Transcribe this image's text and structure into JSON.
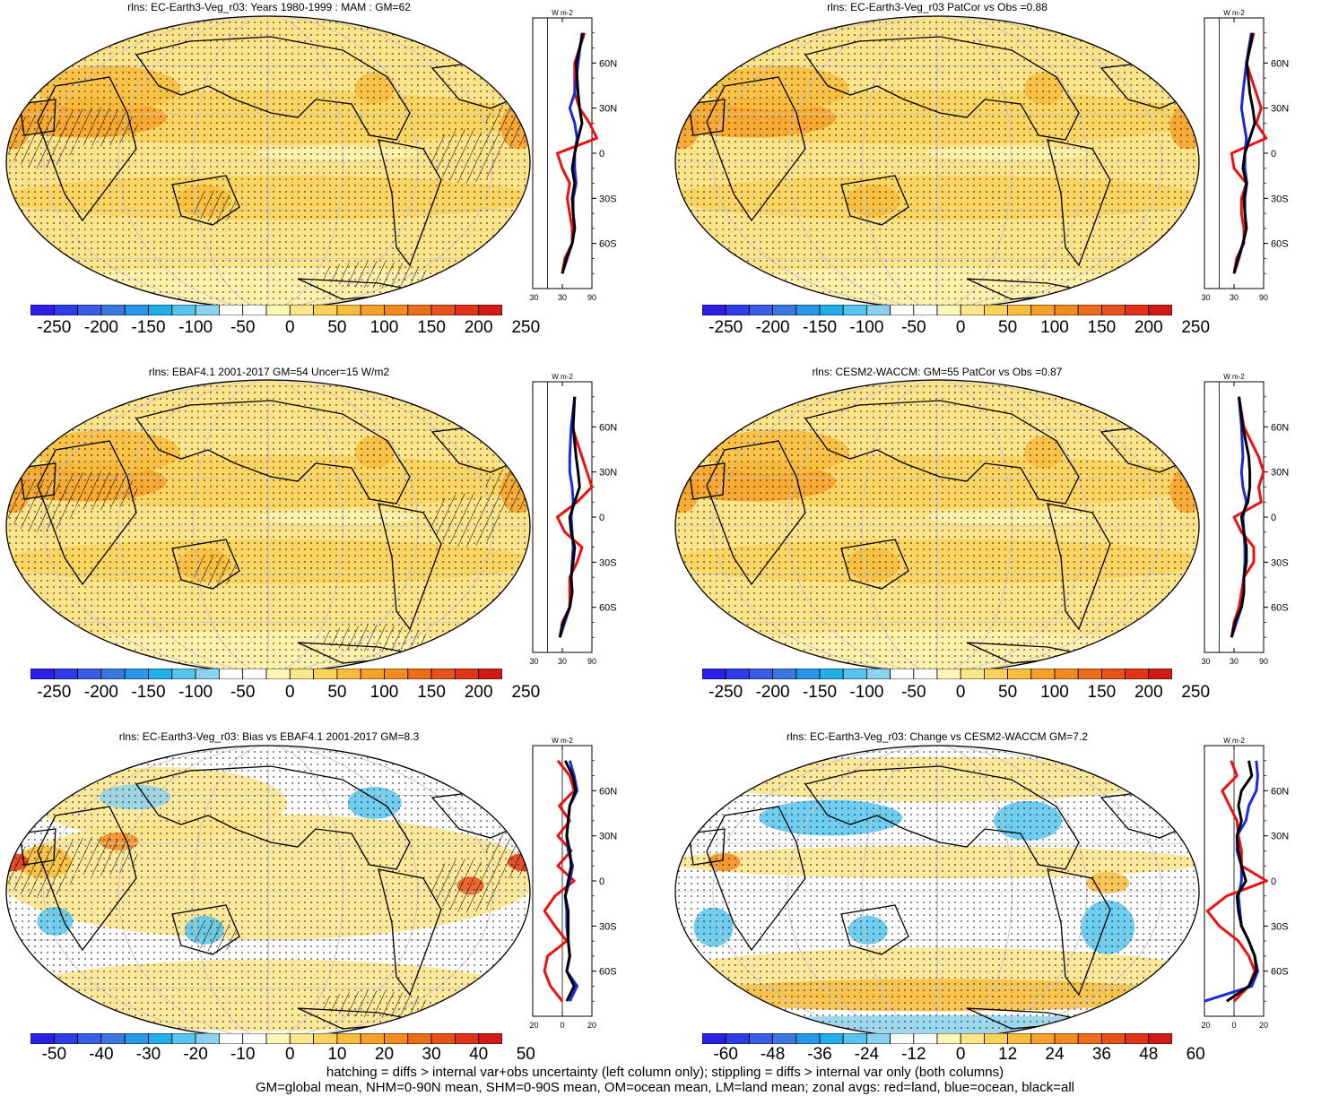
{
  "panels": [
    {
      "title": "rlns: EC-Earth3-Veg_r03: Years 1980-1999 : MAM : GM=62",
      "scale": "abs",
      "colorbar_ticks": [
        "-250",
        "-200",
        "-150",
        "-100",
        "-50",
        "0",
        "50",
        "100",
        "150",
        "200",
        "250"
      ],
      "zonal_xticks": [
        "-30",
        "30",
        "90"
      ],
      "zonal_unit": "W m-2",
      "hatching": true
    },
    {
      "title": "rlns: EC-Earth3-Veg_r03 PatCor vs Obs =0.88",
      "scale": "abs",
      "colorbar_ticks": [
        "-250",
        "-200",
        "-150",
        "-100",
        "-50",
        "0",
        "50",
        "100",
        "150",
        "200",
        "250"
      ],
      "zonal_xticks": [
        "-30",
        "30",
        "90"
      ],
      "zonal_unit": "W m-2",
      "hatching": false
    },
    {
      "title": "rlns: EBAF4.1 2001-2017 GM=54 Uncer=15 W/m2",
      "scale": "abs",
      "colorbar_ticks": [
        "-250",
        "-200",
        "-150",
        "-100",
        "-50",
        "0",
        "50",
        "100",
        "150",
        "200",
        "250"
      ],
      "zonal_xticks": [
        "-30",
        "30",
        "90"
      ],
      "zonal_unit": "W m-2",
      "hatching": true
    },
    {
      "title": "rlns: CESM2-WACCM: GM=55 PatCor vs Obs =0.87",
      "scale": "abs",
      "colorbar_ticks": [
        "-250",
        "-200",
        "-150",
        "-100",
        "-50",
        "0",
        "50",
        "100",
        "150",
        "200",
        "250"
      ],
      "zonal_xticks": [
        "-30",
        "30",
        "90"
      ],
      "zonal_unit": "W m-2",
      "hatching": false
    },
    {
      "title": "rlns: EC-Earth3-Veg_r03: Bias vs EBAF4.1 2001-2017 GM=8.3",
      "scale": "diff",
      "colorbar_ticks": [
        "-50",
        "-40",
        "-30",
        "-20",
        "-10",
        "0",
        "10",
        "20",
        "30",
        "40",
        "50"
      ],
      "zonal_xticks": [
        "-20",
        "0",
        "20"
      ],
      "zonal_unit": "W m-2",
      "hatching": true
    },
    {
      "title": "rlns: EC-Earth3-Veg_r03: Change vs CESM2-WACCM GM=7.2",
      "scale": "diff",
      "colorbar_ticks": [
        "-60",
        "-48",
        "-36",
        "-24",
        "-12",
        "0",
        "12",
        "24",
        "36",
        "48",
        "60"
      ],
      "zonal_xticks": [
        "-20",
        "0",
        "20"
      ],
      "zonal_unit": "W m-2",
      "hatching": false
    }
  ],
  "zonal_ylabels": [
    "60N",
    "30N",
    "0",
    "30S",
    "60S"
  ],
  "colorbar_colors": [
    "#2b1ee6",
    "#2e3ce6",
    "#3a5ce6",
    "#3a78e0",
    "#2a96e8",
    "#22aee8",
    "#56c4ec",
    "#8ad2ee",
    "#ffffff",
    "#ffffff",
    "#fff7b8",
    "#fde78a",
    "#fbd25a",
    "#f9bc3c",
    "#f6a12a",
    "#f18a20",
    "#ec6e1c",
    "#e6521a",
    "#e0331a",
    "#d11a16"
  ],
  "line_colors": {
    "land": "#ee1111",
    "ocean": "#1a2ae0",
    "all": "#000000"
  },
  "footnote": [
    "hatching = diffs > internal var+obs uncertainty (left column only); stippling = diffs > internal var only (both columns)",
    "GM=global mean, NHM=0-90N mean, SHM=0-90S mean, OM=ocean mean, LM=land mean; zonal avgs: red=land, blue=ocean, black=all"
  ],
  "chart_data": [
    {
      "type": "heatmap",
      "title": "rlns: EC-Earth3-Veg_r03: Years 1980-1999 : MAM : GM=62",
      "colorbar": [
        -250,
        250
      ],
      "zonal": {
        "xlim": [
          -30,
          90
        ],
        "lat": [
          80,
          60,
          40,
          30,
          20,
          10,
          0,
          -10,
          -20,
          -30,
          -40,
          -50,
          -60,
          -70,
          -80
        ],
        "land": [
          75,
          55,
          55,
          65,
          85,
          100,
          20,
          30,
          45,
          40,
          45,
          50,
          50,
          35,
          30
        ],
        "ocean": [
          70,
          62,
          55,
          45,
          55,
          60,
          55,
          55,
          58,
          52,
          52,
          55,
          50,
          40,
          30
        ],
        "all": [
          72,
          58,
          62,
          65,
          70,
          62,
          55,
          50,
          55,
          50,
          52,
          55,
          50,
          38,
          30
        ]
      }
    },
    {
      "type": "heatmap",
      "title": "rlns: EC-Earth3-Veg_r03 PatCor vs Obs =0.88",
      "colorbar": [
        -250,
        250
      ],
      "zonal": {
        "xlim": [
          -30,
          90
        ],
        "lat": [
          80,
          60,
          40,
          30,
          20,
          10,
          0,
          -10,
          -20,
          -30,
          -40,
          -50,
          -60,
          -70,
          -80
        ],
        "land": [
          70,
          55,
          75,
          85,
          75,
          95,
          25,
          30,
          55,
          45,
          45,
          50,
          50,
          35,
          30
        ],
        "ocean": [
          65,
          55,
          48,
          45,
          50,
          55,
          52,
          52,
          56,
          52,
          52,
          55,
          48,
          40,
          30
        ],
        "all": [
          68,
          56,
          62,
          68,
          72,
          62,
          52,
          48,
          55,
          50,
          52,
          55,
          48,
          38,
          30
        ]
      }
    },
    {
      "type": "heatmap",
      "title": "rlns: EBAF4.1 2001-2017 GM=54 Uncer=15 W/m2",
      "colorbar": [
        -250,
        250
      ],
      "zonal": {
        "xlim": [
          -30,
          90
        ],
        "lat": [
          80,
          60,
          40,
          30,
          20,
          10,
          0,
          -10,
          -20,
          -30,
          -40,
          -50,
          -60,
          -70,
          -80
        ],
        "land": [
          55,
          50,
          70,
          80,
          90,
          60,
          20,
          35,
          70,
          60,
          45,
          45,
          45,
          30,
          25
        ],
        "ocean": [
          55,
          48,
          45,
          45,
          50,
          52,
          48,
          50,
          52,
          50,
          48,
          50,
          45,
          35,
          25
        ],
        "all": [
          55,
          52,
          58,
          62,
          65,
          55,
          45,
          48,
          55,
          52,
          48,
          50,
          45,
          32,
          25
        ]
      }
    },
    {
      "type": "heatmap",
      "title": "rlns: CESM2-WACCM: GM=55 PatCor vs Obs =0.87",
      "colorbar": [
        -250,
        250
      ],
      "zonal": {
        "xlim": [
          -30,
          90
        ],
        "lat": [
          80,
          60,
          40,
          30,
          20,
          10,
          0,
          -10,
          -20,
          -30,
          -40,
          -50,
          -60,
          -70,
          -80
        ],
        "land": [
          40,
          50,
          80,
          90,
          80,
          85,
          30,
          45,
          70,
          70,
          50,
          45,
          40,
          30,
          25
        ],
        "ocean": [
          40,
          45,
          48,
          45,
          48,
          55,
          48,
          50,
          52,
          52,
          50,
          50,
          45,
          35,
          25
        ],
        "all": [
          40,
          48,
          60,
          62,
          62,
          58,
          45,
          50,
          55,
          55,
          50,
          50,
          45,
          32,
          25
        ]
      }
    },
    {
      "type": "heatmap",
      "title": "rlns: EC-Earth3-Veg_r03: Bias vs EBAF4.1 2001-2017 GM=8.3",
      "colorbar": [
        -55,
        55
      ],
      "zonal": {
        "xlim": [
          -20,
          20
        ],
        "lat": [
          80,
          70,
          60,
          50,
          40,
          30,
          20,
          10,
          0,
          -10,
          -20,
          -30,
          -40,
          -50,
          -60,
          -70,
          -80
        ],
        "land": [
          -3,
          5,
          8,
          -2,
          5,
          -3,
          6,
          -3,
          8,
          -5,
          -12,
          -5,
          3,
          -10,
          -12,
          -8,
          0
        ],
        "ocean": [
          5,
          8,
          10,
          5,
          4,
          3,
          4,
          7,
          5,
          2,
          3,
          3,
          4,
          5,
          3,
          10,
          5
        ],
        "all": [
          2,
          7,
          9,
          5,
          4,
          3,
          5,
          6,
          4,
          2,
          4,
          4,
          4,
          5,
          3,
          8,
          3
        ]
      }
    },
    {
      "type": "heatmap",
      "title": "rlns: EC-Earth3-Veg_r03: Change vs CESM2-WACCM GM=7.2",
      "colorbar": [
        -66,
        66
      ],
      "zonal": {
        "xlim": [
          -20,
          20
        ],
        "lat": [
          80,
          70,
          60,
          50,
          40,
          30,
          20,
          10,
          0,
          -10,
          -20,
          -30,
          -40,
          -50,
          -60,
          -70,
          -80
        ],
        "land": [
          -2,
          2,
          -8,
          -3,
          2,
          3,
          5,
          5,
          22,
          -5,
          -18,
          -10,
          3,
          10,
          14,
          10,
          0
        ],
        "ocean": [
          15,
          16,
          15,
          10,
          8,
          2,
          2,
          5,
          5,
          3,
          4,
          5,
          10,
          14,
          16,
          12,
          -20
        ],
        "all": [
          10,
          12,
          5,
          3,
          5,
          2,
          3,
          5,
          8,
          2,
          3,
          5,
          10,
          14,
          15,
          10,
          -5
        ]
      }
    }
  ]
}
